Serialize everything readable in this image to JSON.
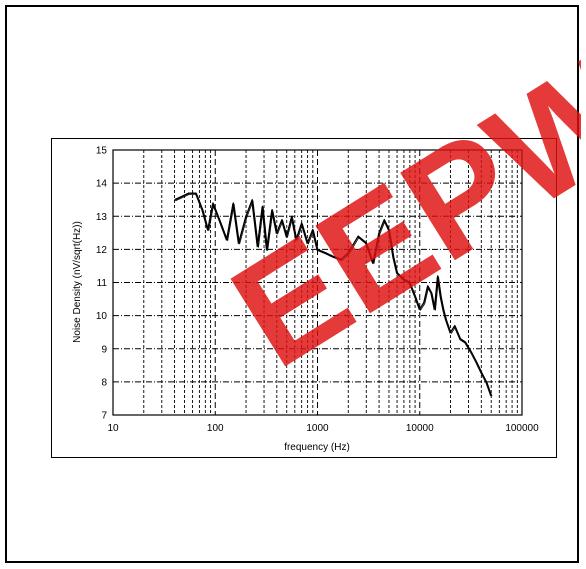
{
  "watermark": {
    "text": "EEPW",
    "color": "#e01010"
  },
  "chart_data": {
    "type": "line",
    "xlabel": "frequency (Hz)",
    "ylabel": "Noise Density (nV/sqrt(Hz))",
    "xscale": "log",
    "xlim": [
      10,
      100000
    ],
    "ylim": [
      7,
      15
    ],
    "grid": true,
    "x_ticks": [
      "10",
      "100",
      "1000",
      "10000",
      "100000"
    ],
    "y_ticks": [
      "7",
      "8",
      "9",
      "10",
      "11",
      "12",
      "13",
      "14",
      "15"
    ],
    "series": [
      {
        "color": "#000000",
        "x": [
          40,
          55,
          65,
          75,
          85,
          95,
          110,
          130,
          150,
          170,
          200,
          230,
          260,
          290,
          320,
          360,
          400,
          450,
          500,
          560,
          620,
          700,
          800,
          900,
          1000,
          1200,
          1400,
          1700,
          2000,
          2500,
          3000,
          3500,
          4000,
          4500,
          5000,
          5500,
          6000,
          7000,
          8000,
          9000,
          10000,
          11000,
          12000,
          13000,
          14000,
          15000,
          16000,
          17000,
          18000,
          20000,
          22000,
          25000,
          28000,
          32000,
          36000,
          40000,
          45000,
          50000
        ],
        "y": [
          13.5,
          13.7,
          13.7,
          13.2,
          12.6,
          13.4,
          12.9,
          12.3,
          13.4,
          12.2,
          13.0,
          13.5,
          12.1,
          13.3,
          12.0,
          13.2,
          12.5,
          12.9,
          12.4,
          13.0,
          12.3,
          12.8,
          12.2,
          12.6,
          12.0,
          11.9,
          11.8,
          11.7,
          11.9,
          12.4,
          12.2,
          11.6,
          12.5,
          12.9,
          12.6,
          11.8,
          11.3,
          11.1,
          11.0,
          10.6,
          10.2,
          10.4,
          10.9,
          10.7,
          10.2,
          11.2,
          10.6,
          10.2,
          9.9,
          9.5,
          9.7,
          9.3,
          9.2,
          8.9,
          8.6,
          8.3,
          8.0,
          7.6
        ]
      }
    ]
  }
}
